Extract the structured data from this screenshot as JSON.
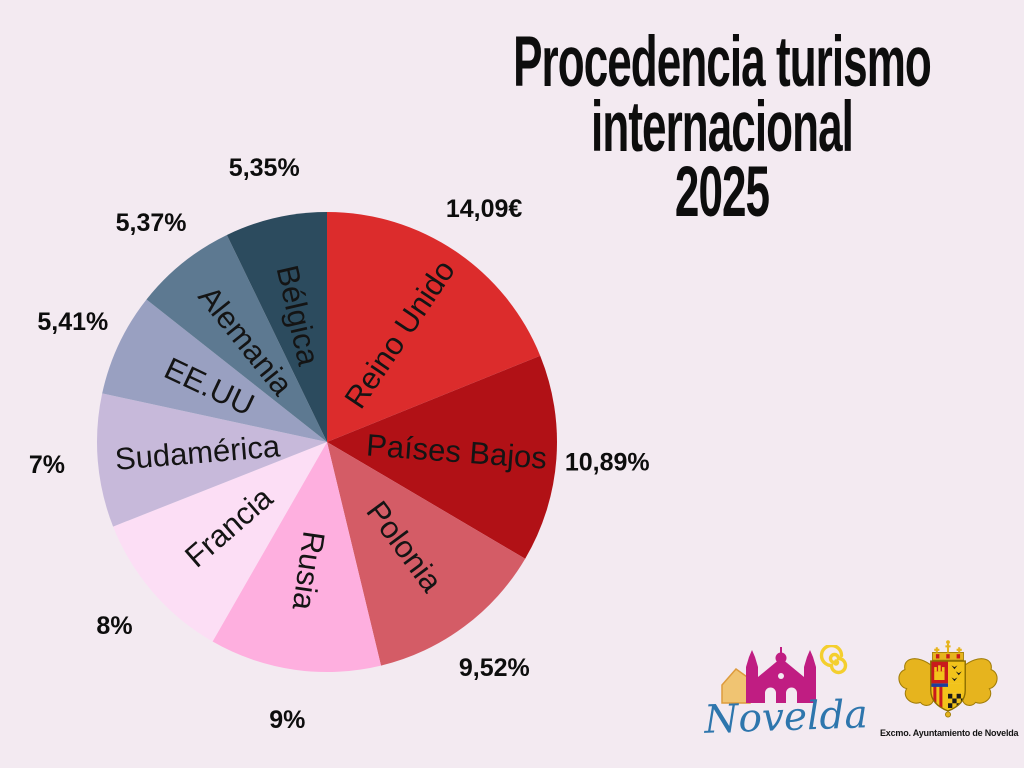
{
  "title": {
    "lines": [
      "Procedencia turismo",
      "internacional",
      "2025"
    ]
  },
  "chart_data": {
    "type": "pie",
    "title": "Procedencia turismo internacional 2025",
    "start_angle_deg": 0,
    "direction": "clockwise",
    "legend_position": "labels-on-slices",
    "slices": [
      {
        "label": "Reino Unido",
        "value": 14.09,
        "value_label": "14,09€",
        "color": "#dc2c2c"
      },
      {
        "label": "Países Bajos",
        "value": 10.89,
        "value_label": "10,89%",
        "color": "#b11116"
      },
      {
        "label": "Polonia",
        "value": 9.52,
        "value_label": "9,52%",
        "color": "#d45c66"
      },
      {
        "label": "Rusia",
        "value": 9.0,
        "value_label": "9%",
        "color": "#feafdf"
      },
      {
        "label": "Francia",
        "value": 8.0,
        "value_label": "8%",
        "color": "#fcdef5"
      },
      {
        "label": "Sudamérica",
        "value": 7.0,
        "value_label": "7%",
        "color": "#c7b9da"
      },
      {
        "label": "EE.UU",
        "value": 5.41,
        "value_label": "5,41%",
        "color": "#99a0c1"
      },
      {
        "label": "Alemania",
        "value": 5.37,
        "value_label": "5,37%",
        "color": "#5d7991"
      },
      {
        "label": "Bélgica",
        "value": 5.35,
        "value_label": "5,35%",
        "color": "#2c4b5e"
      }
    ],
    "label_color": "#141414",
    "value_label_color": "#0d0d0d"
  },
  "logos": {
    "novelda_wordmark": "Novelda",
    "novelda_brand_colors": {
      "wordmark_blue": "#2e76ad",
      "sanctuary_magenta": "#c01d82",
      "house_orange": "#f0c472",
      "sun_yellow": "#f4cf2e"
    },
    "ayuntamiento_caption": "Excmo. Ayuntamiento de Novelda",
    "crest_colors": {
      "gold": "#e6b41e",
      "red": "#c91a1c",
      "black": "#1a1a1a"
    }
  }
}
